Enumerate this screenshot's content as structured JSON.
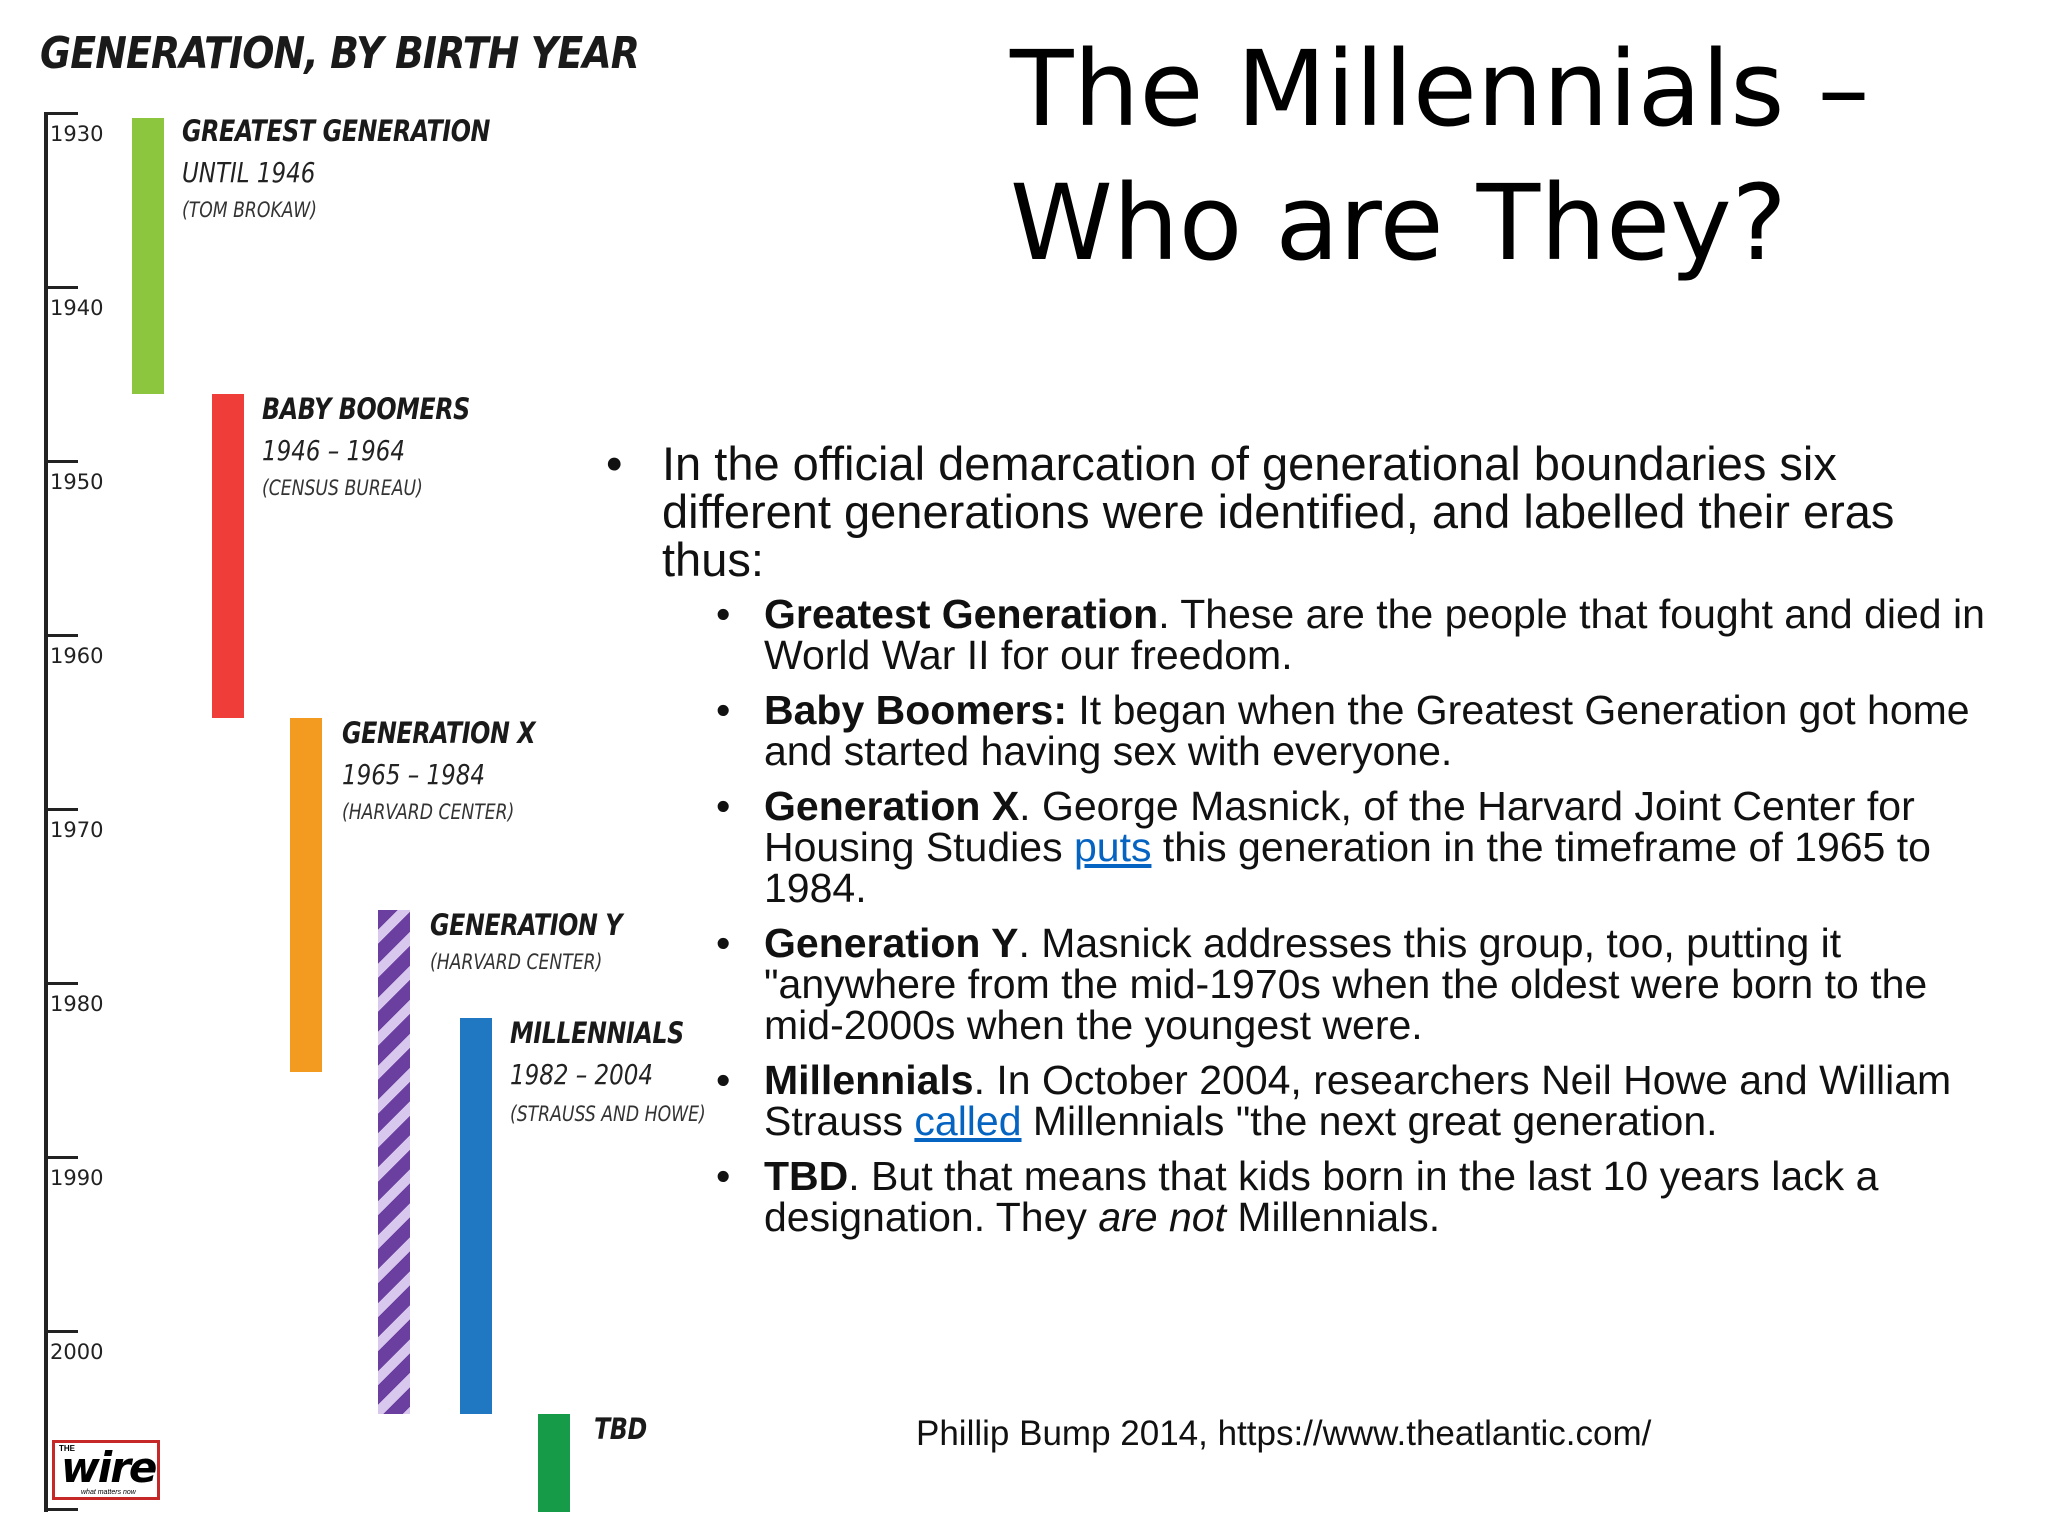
{
  "timeline": {
    "title": "GENERATION, BY BIRTH YEAR",
    "years": [
      "1930",
      "1940",
      "1950",
      "1960",
      "1970",
      "1980",
      "1990",
      "2000"
    ],
    "generations": [
      {
        "name": "GREATEST GENERATION",
        "range": "UNTIL 1946",
        "source": "(TOM BROKAW)",
        "color": "#8cc63f",
        "pattern": "solid"
      },
      {
        "name": "BABY BOOMERS",
        "range": "1946 – 1964",
        "source": "(CENSUS BUREAU)",
        "color": "#ef3e3a",
        "pattern": "solid"
      },
      {
        "name": "GENERATION X",
        "range": "1965 – 1984",
        "source": "(HARVARD CENTER)",
        "color": "#f39a21",
        "pattern": "solid"
      },
      {
        "name": "GENERATION Y",
        "range": "",
        "source": "(HARVARD CENTER)",
        "color": "#6b3fa0",
        "pattern": "striped"
      },
      {
        "name": "MILLENNIALS",
        "range": "1982 – 2004",
        "source": "(STRAUSS AND HOWE)",
        "color": "#1f78c1",
        "pattern": "solid"
      },
      {
        "name": "TBD",
        "range": "",
        "source": "",
        "color": "#169b48",
        "pattern": "solid"
      }
    ],
    "logo": {
      "top": "THE",
      "word": "wire",
      "tagline": "what matters now"
    }
  },
  "slide": {
    "title_line1": "The Millennials –",
    "title_line2": "Who are They?",
    "intro": "In the official demarcation of generational boundaries six different generations were identified, and labelled their eras thus:",
    "items": [
      {
        "bold": "Greatest Generation",
        "text": ". These are the people that fought and died in World War II for our freedom."
      },
      {
        "bold": "Baby Boomers:",
        "text": " It began when the Greatest Generation got home and started having sex with everyone."
      },
      {
        "bold": "Generation X",
        "pre": ". George Masnick, of the Harvard Joint Center for Housing Studies ",
        "link": "puts",
        "post": " this generation in the timeframe of 1965 to 1984."
      },
      {
        "bold": "Generation Y",
        "text": ". Masnick addresses this group, too, putting it \"anywhere from the mid-1970s when the oldest were born to the mid-2000s when the youngest were."
      },
      {
        "bold": "Millennials",
        "pre": ". In October 2004, researchers Neil Howe and William Strauss ",
        "link": "called",
        "post": " Millennials \"the next great generation."
      },
      {
        "bold": "TBD",
        "pre": ". But that means that kids born in the last 10 years lack a designation. They ",
        "em": "are not",
        "post": " Millennials."
      }
    ],
    "citation": "Phillip Bump 2014, https://www.theatlantic.com/"
  }
}
